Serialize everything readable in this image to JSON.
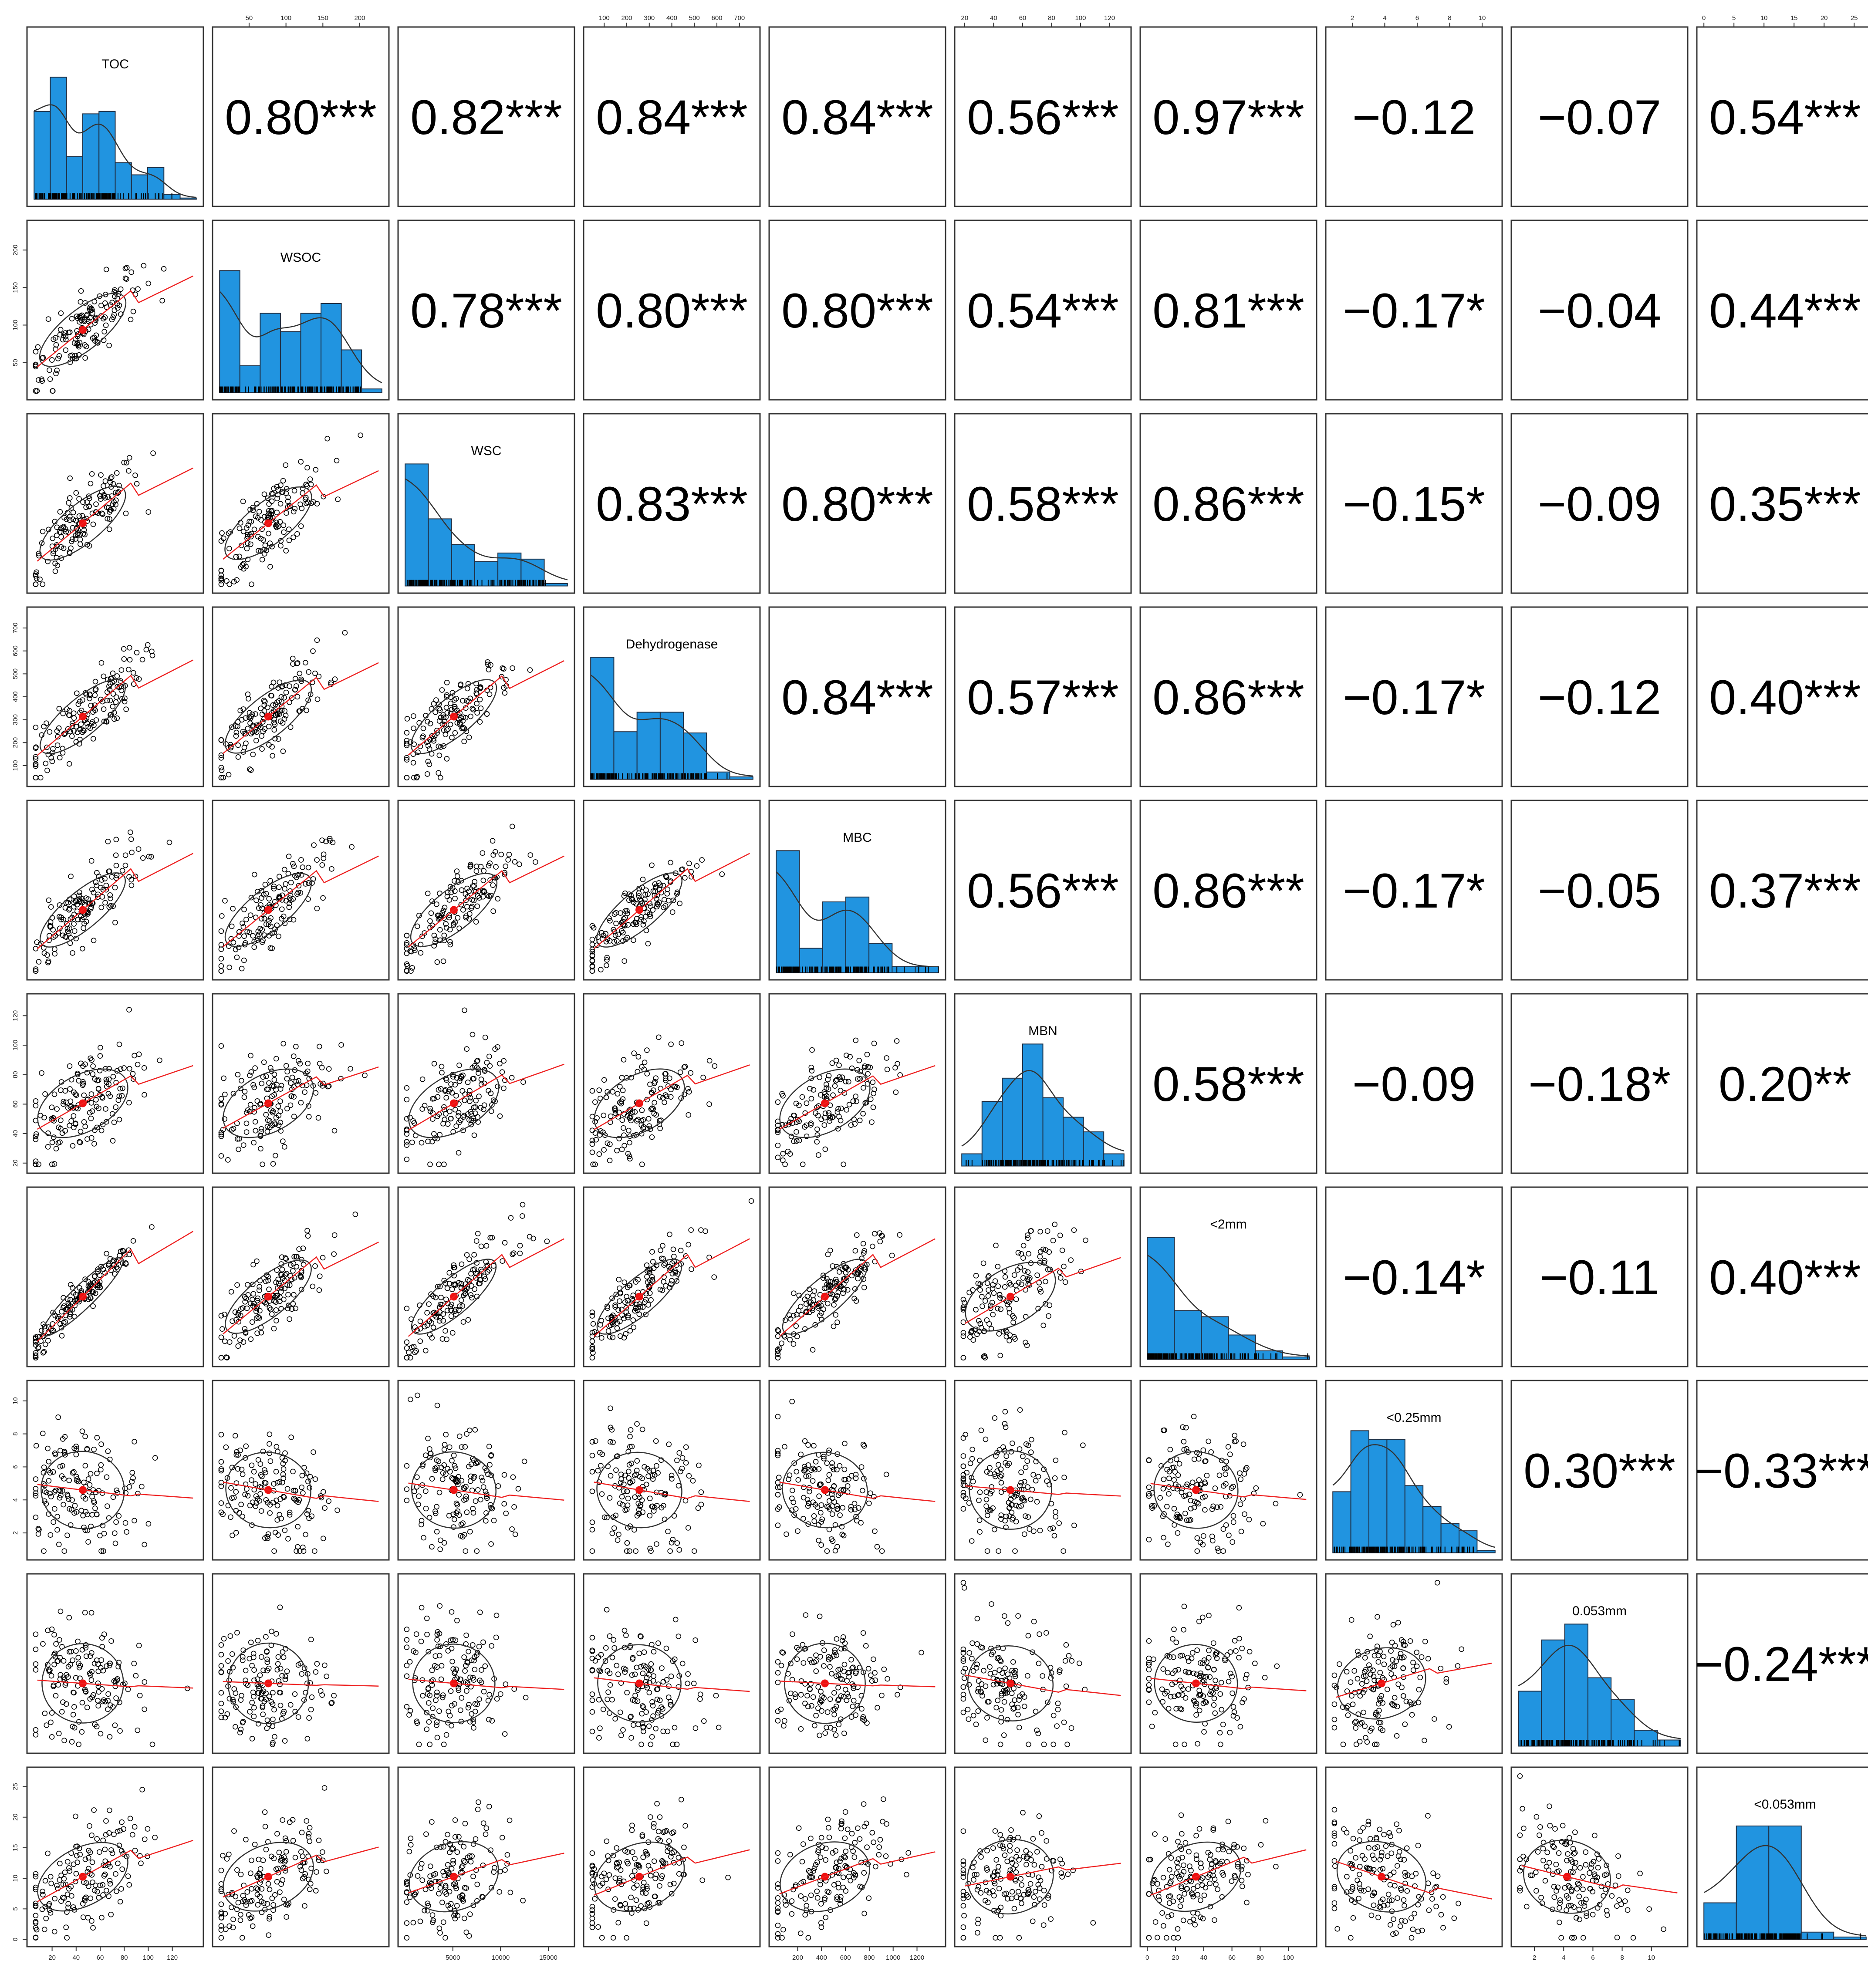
{
  "chart_data": {
    "type": "scatter-matrix",
    "title": "",
    "variables": [
      "TOC",
      "WSOC",
      "WSC",
      "Dehydrogenase",
      "MBC",
      "MBN",
      "<2mm",
      "<0.25mm",
      "0.053mm",
      "<0.053mm"
    ],
    "ranges": [
      [
        5,
        140
      ],
      [
        10,
        230
      ],
      [
        0,
        17000
      ],
      [
        40,
        760
      ],
      [
        20,
        1380
      ],
      [
        18,
        130
      ],
      [
        0,
        115
      ],
      [
        0.8,
        10.8
      ],
      [
        0.9,
        12
      ],
      [
        0,
        27
      ]
    ],
    "ticks": [
      [
        20,
        40,
        60,
        80,
        100,
        120
      ],
      [
        50,
        100,
        150,
        200
      ],
      [
        5000,
        10000,
        15000
      ],
      [
        100,
        200,
        300,
        400,
        500,
        600,
        700
      ],
      [
        200,
        400,
        600,
        800,
        1000,
        1200
      ],
      [
        20,
        40,
        60,
        80,
        100,
        120
      ],
      [
        0,
        20,
        40,
        60,
        80,
        100
      ],
      [
        2,
        4,
        6,
        8,
        10
      ],
      [
        2,
        4,
        6,
        8,
        10
      ],
      [
        0,
        5,
        10,
        15,
        20,
        25
      ]
    ],
    "correlations": [
      [
        "0.80***",
        "0.82***",
        "0.84***",
        "0.84***",
        "0.56***",
        "0.97***",
        "−0.12",
        "−0.07",
        "0.54***"
      ],
      [
        "0.78***",
        "0.80***",
        "0.80***",
        "0.54***",
        "0.81***",
        "−0.17*",
        "−0.04",
        "0.44***"
      ],
      [
        "0.83***",
        "0.80***",
        "0.58***",
        "0.86***",
        "−0.15*",
        "−0.09",
        "0.35***"
      ],
      [
        "0.84***",
        "0.57***",
        "0.86***",
        "−0.17*",
        "−0.12",
        "0.40***"
      ],
      [
        "0.56***",
        "0.86***",
        "−0.17*",
        "−0.05",
        "0.37***"
      ],
      [
        "0.58***",
        "−0.09",
        "−0.18*",
        "0.20**"
      ],
      [
        "−0.14*",
        "−0.11",
        "0.40***"
      ],
      [
        "0.30***",
        "−0.33***"
      ],
      [
        "−0.24***"
      ]
    ],
    "histograms": [
      [
        0.72,
        1.0,
        0.35,
        0.7,
        0.72,
        0.3,
        0.2,
        0.26,
        0.04,
        0.01
      ],
      [
        1.0,
        0.22,
        0.65,
        0.5,
        0.65,
        0.73,
        0.35,
        0.03
      ],
      [
        1.0,
        0.55,
        0.34,
        0.2,
        0.27,
        0.22,
        0.02
      ],
      [
        1.0,
        0.39,
        0.55,
        0.55,
        0.38,
        0.06,
        0.02
      ],
      [
        1.0,
        0.2,
        0.58,
        0.62,
        0.24,
        0.05,
        0.05
      ],
      [
        0.1,
        0.53,
        0.72,
        1.0,
        0.56,
        0.4,
        0.28,
        0.1
      ],
      [
        1.0,
        0.4,
        0.35,
        0.2,
        0.07,
        0.02
      ],
      [
        0.5,
        1.0,
        0.93,
        0.93,
        0.55,
        0.38,
        0.24,
        0.18,
        0.02
      ],
      [
        0.45,
        0.87,
        1.0,
        0.56,
        0.38,
        0.13,
        0.05
      ],
      [
        0.3,
        0.93,
        0.93,
        0.06,
        0.02
      ]
    ],
    "axes": {
      "top": [
        1,
        3,
        5,
        7,
        9
      ],
      "bottom": [
        0,
        2,
        4,
        6,
        8
      ],
      "right": [
        0,
        2,
        4,
        6,
        8
      ],
      "left": [
        1,
        3,
        5,
        7,
        9
      ]
    },
    "grid": false,
    "legend": "none",
    "colors": {
      "histogram": "#2194e0",
      "fit": "#ee2222",
      "ellipse": "#333333",
      "points": "#000000"
    }
  }
}
